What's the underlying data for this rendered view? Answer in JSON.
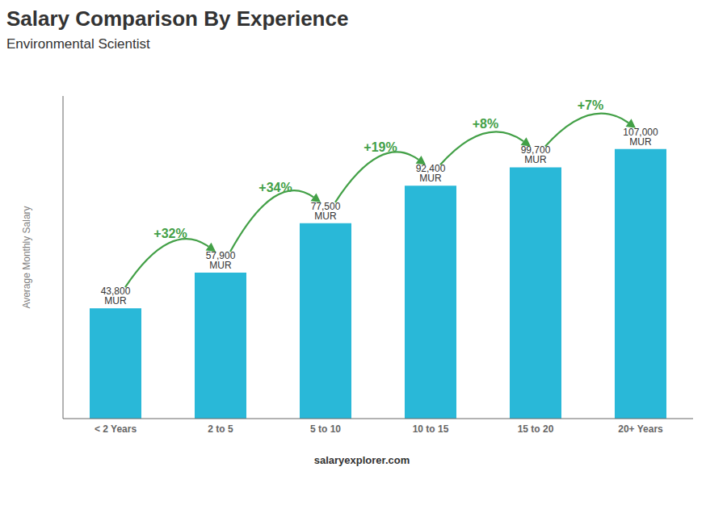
{
  "chart_data": {
    "type": "bar",
    "title": "Salary Comparison By Experience",
    "subtitle": "Environmental Scientist",
    "ylabel": "Average Monthly Salary",
    "source": "salaryexplorer.com",
    "categories": [
      "< 2 Years",
      "2 to 5",
      "5 to 10",
      "10 to 15",
      "15 to 20",
      "20+ Years"
    ],
    "values": [
      43800,
      57900,
      77500,
      92400,
      99700,
      107000
    ],
    "value_labels": [
      "43,800 MUR",
      "57,900 MUR",
      "77,500 MUR",
      "92,400 MUR",
      "99,700 MUR",
      "107,000 MUR"
    ],
    "data_labels": true,
    "annotations": [
      "+32%",
      "+34%",
      "+19%",
      "+8%",
      "+7%"
    ],
    "color": "#29b8d8",
    "ylim": [
      0,
      128000
    ],
    "grid": false,
    "tick_labels": "x"
  }
}
